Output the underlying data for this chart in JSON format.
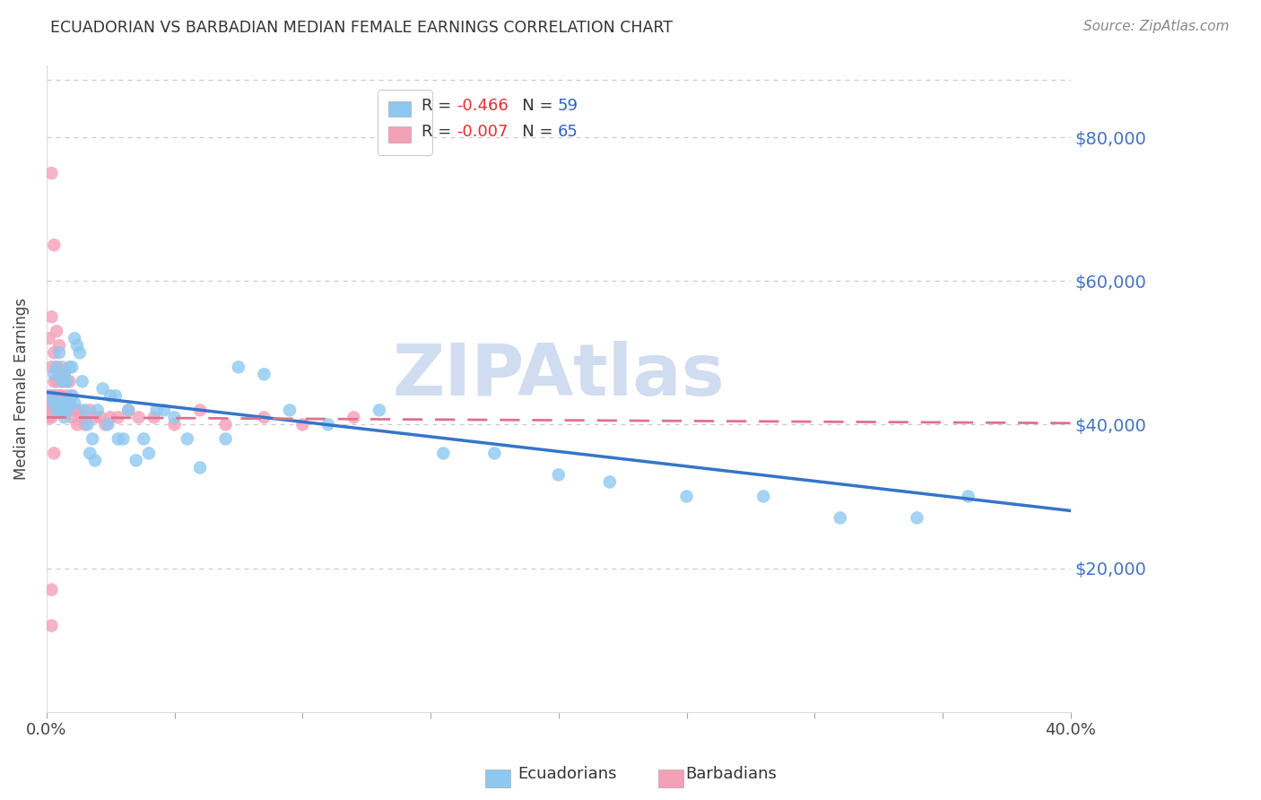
{
  "title": "ECUADORIAN VS BARBADIAN MEDIAN FEMALE EARNINGS CORRELATION CHART",
  "source": "Source: ZipAtlas.com",
  "ylabel": "Median Female Earnings",
  "xlim": [
    0.0,
    0.4
  ],
  "ylim": [
    0,
    90000
  ],
  "yticks": [
    0,
    20000,
    40000,
    60000,
    80000
  ],
  "ytick_labels": [
    "",
    "$20,000",
    "$40,000",
    "$60,000",
    "$80,000"
  ],
  "xticks": [
    0.0,
    0.05,
    0.1,
    0.15,
    0.2,
    0.25,
    0.3,
    0.35,
    0.4
  ],
  "xtick_labels": [
    "0.0%",
    "",
    "",
    "",
    "",
    "",
    "",
    "",
    "40.0%"
  ],
  "grid_color": "#cccccc",
  "background_color": "#ffffff",
  "ecuadorians_color": "#8EC8F0",
  "barbadians_color": "#F4A0B8",
  "trendline_ecuador_color": "#3575C8",
  "trendline_barbados_color": "#E07090",
  "legend_R_color_ecu": "#E04040",
  "legend_N_color_ecu": "#3060C0",
  "legend_R_color_bar": "#E04040",
  "legend_N_color_bar": "#3060C0",
  "legend_R_ecuador": "-0.466",
  "legend_N_ecuador": "59",
  "legend_R_barbados": "-0.007",
  "legend_N_barbados": "65",
  "watermark": "ZIPAtlas",
  "watermark_color": "#D0DCF0",
  "trendline_ecu_x0": 0.0,
  "trendline_ecu_y0": 44500,
  "trendline_ecu_x1": 0.4,
  "trendline_ecu_y1": 28000,
  "trendline_bar_x0": 0.0,
  "trendline_bar_y0": 41000,
  "trendline_bar_x1": 0.4,
  "trendline_bar_y1": 40200,
  "ecuadorians_x": [
    0.002,
    0.003,
    0.003,
    0.004,
    0.004,
    0.005,
    0.005,
    0.006,
    0.006,
    0.007,
    0.007,
    0.007,
    0.008,
    0.008,
    0.009,
    0.009,
    0.01,
    0.01,
    0.011,
    0.011,
    0.012,
    0.013,
    0.014,
    0.015,
    0.016,
    0.017,
    0.018,
    0.019,
    0.02,
    0.022,
    0.024,
    0.025,
    0.027,
    0.028,
    0.03,
    0.032,
    0.035,
    0.038,
    0.04,
    0.043,
    0.046,
    0.05,
    0.055,
    0.06,
    0.07,
    0.075,
    0.085,
    0.095,
    0.11,
    0.13,
    0.155,
    0.175,
    0.2,
    0.22,
    0.25,
    0.28,
    0.31,
    0.34,
    0.36
  ],
  "ecuadorians_y": [
    44000,
    47000,
    43000,
    48000,
    42000,
    50000,
    43000,
    46000,
    42000,
    47000,
    43000,
    41000,
    46000,
    42000,
    48000,
    43000,
    48000,
    44000,
    52000,
    43000,
    51000,
    50000,
    46000,
    42000,
    40000,
    36000,
    38000,
    35000,
    42000,
    45000,
    40000,
    44000,
    44000,
    38000,
    38000,
    42000,
    35000,
    38000,
    36000,
    42000,
    42000,
    41000,
    38000,
    34000,
    38000,
    48000,
    47000,
    42000,
    40000,
    42000,
    36000,
    36000,
    33000,
    32000,
    30000,
    30000,
    27000,
    27000,
    30000
  ],
  "barbadians_x": [
    0.001,
    0.001,
    0.001,
    0.001,
    0.001,
    0.002,
    0.002,
    0.002,
    0.002,
    0.002,
    0.002,
    0.002,
    0.003,
    0.003,
    0.003,
    0.003,
    0.003,
    0.003,
    0.004,
    0.004,
    0.004,
    0.004,
    0.004,
    0.005,
    0.005,
    0.005,
    0.005,
    0.005,
    0.006,
    0.006,
    0.006,
    0.006,
    0.007,
    0.007,
    0.007,
    0.007,
    0.008,
    0.008,
    0.009,
    0.009,
    0.01,
    0.01,
    0.011,
    0.012,
    0.013,
    0.014,
    0.015,
    0.017,
    0.019,
    0.021,
    0.023,
    0.025,
    0.028,
    0.032,
    0.036,
    0.042,
    0.05,
    0.06,
    0.07,
    0.085,
    0.1,
    0.12,
    0.002,
    0.002,
    0.003
  ],
  "barbadians_y": [
    43000,
    44000,
    42000,
    41000,
    52000,
    75000,
    55000,
    48000,
    43000,
    44000,
    42000,
    41000,
    65000,
    50000,
    46000,
    44000,
    43000,
    42000,
    53000,
    48000,
    46000,
    44000,
    43000,
    51000,
    47000,
    44000,
    43000,
    42000,
    48000,
    46000,
    44000,
    42000,
    47000,
    46000,
    43000,
    42000,
    44000,
    42000,
    46000,
    43000,
    44000,
    41000,
    42000,
    40000,
    42000,
    41000,
    40000,
    42000,
    41000,
    41000,
    40000,
    41000,
    41000,
    42000,
    41000,
    41000,
    40000,
    42000,
    40000,
    41000,
    40000,
    41000,
    17000,
    12000,
    36000
  ]
}
